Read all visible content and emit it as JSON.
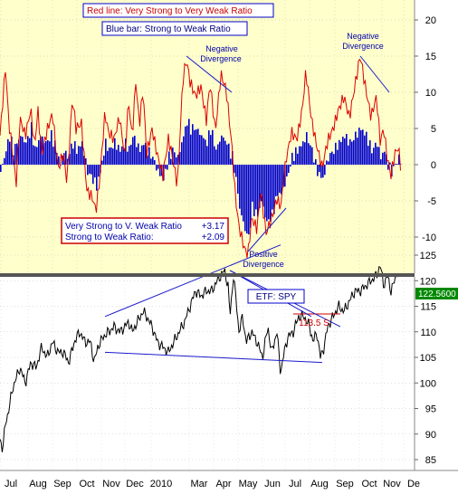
{
  "legend": {
    "red_line": "Red line:  Very Strong to Very Weak Ratio",
    "blue_bar": "Blue bar:  Strong to Weak Ratio"
  },
  "readout": {
    "row1_label": "Very Strong to V. Weak Ratio",
    "row1_value": "+3.17",
    "row2_label": "Strong to Weak Ratio:",
    "row2_value": "+2.09"
  },
  "colors": {
    "top_background": "#ffffcc",
    "red_line": "#dd0000",
    "blue_bar": "#0000cc",
    "price_line": "#000000",
    "trend_line": "#1a1acc"
  },
  "chart_data": [
    {
      "type": "bar",
      "panel": "breadth-ratio",
      "title": "",
      "yticks": [
        -10,
        -5,
        0,
        5,
        10,
        15,
        20
      ],
      "ylim": [
        -14,
        23
      ],
      "grid": true,
      "gridlines": "dotted",
      "months": [
        "Jul",
        "Aug",
        "Sep",
        "Oct",
        "Nov",
        "Dec",
        "2010",
        "Mar",
        "Apr",
        "May",
        "Jun",
        "Jul",
        "Aug",
        "Sep",
        "Oct",
        "Nov",
        "De"
      ],
      "series": [
        {
          "name": "Very Strong to Very Weak Ratio",
          "style": "line",
          "color": "#dd0000",
          "keypoints": [
            [
              0,
              4
            ],
            [
              6,
              13
            ],
            [
              10,
              5
            ],
            [
              14,
              1
            ],
            [
              18,
              -3
            ],
            [
              22,
              6
            ],
            [
              28,
              4
            ],
            [
              34,
              8
            ],
            [
              38,
              3
            ],
            [
              42,
              8
            ],
            [
              46,
              2
            ],
            [
              52,
              5
            ],
            [
              58,
              7
            ],
            [
              64,
              -1
            ],
            [
              70,
              1
            ],
            [
              74,
              -3
            ],
            [
              80,
              9
            ],
            [
              84,
              5
            ],
            [
              90,
              6
            ],
            [
              96,
              -3
            ],
            [
              102,
              -4
            ],
            [
              106,
              -6
            ],
            [
              110,
              -2
            ],
            [
              116,
              7
            ],
            [
              120,
              4
            ],
            [
              126,
              3
            ],
            [
              132,
              6
            ],
            [
              138,
              1
            ],
            [
              142,
              9
            ],
            [
              146,
              4
            ],
            [
              150,
              12
            ],
            [
              154,
              6
            ],
            [
              158,
              11
            ],
            [
              162,
              2
            ],
            [
              168,
              5
            ],
            [
              174,
              1
            ],
            [
              180,
              -2
            ],
            [
              186,
              3
            ],
            [
              190,
              1
            ],
            [
              196,
              -3
            ],
            [
              202,
              12
            ],
            [
              206,
              15
            ],
            [
              210,
              12
            ],
            [
              216,
              10
            ],
            [
              222,
              11
            ],
            [
              228,
              6
            ],
            [
              232,
              11
            ],
            [
              238,
              4
            ],
            [
              244,
              12
            ],
            [
              250,
              10
            ],
            [
              256,
              3
            ],
            [
              260,
              -4
            ],
            [
              264,
              -8
            ],
            [
              270,
              -11
            ],
            [
              274,
              -12
            ],
            [
              278,
              -7
            ],
            [
              284,
              -9
            ],
            [
              288,
              -4
            ],
            [
              294,
              -10
            ],
            [
              300,
              -8
            ],
            [
              306,
              -5
            ],
            [
              310,
              -6
            ],
            [
              316,
              1
            ],
            [
              322,
              5
            ],
            [
              328,
              4
            ],
            [
              334,
              8
            ],
            [
              338,
              13
            ],
            [
              344,
              6
            ],
            [
              350,
              2
            ],
            [
              356,
              -1
            ],
            [
              362,
              3
            ],
            [
              368,
              5
            ],
            [
              374,
              8
            ],
            [
              380,
              10
            ],
            [
              386,
              7
            ],
            [
              392,
              11
            ],
            [
              398,
              15
            ],
            [
              404,
              10
            ],
            [
              410,
              6
            ],
            [
              416,
              9
            ],
            [
              420,
              3
            ],
            [
              424,
              5
            ],
            [
              428,
              1
            ],
            [
              432,
              -1
            ],
            [
              436,
              2
            ],
            [
              440,
              3
            ],
            [
              443,
              0
            ]
          ]
        },
        {
          "name": "Strong to Weak Ratio",
          "style": "bar",
          "color": "#0000cc",
          "keypoints": [
            [
              0,
              -1
            ],
            [
              6,
              2
            ],
            [
              10,
              4
            ],
            [
              14,
              2
            ],
            [
              18,
              3
            ],
            [
              22,
              4
            ],
            [
              28,
              3
            ],
            [
              34,
              5
            ],
            [
              38,
              2
            ],
            [
              44,
              4
            ],
            [
              50,
              3
            ],
            [
              56,
              4
            ],
            [
              62,
              2
            ],
            [
              66,
              0
            ],
            [
              70,
              2
            ],
            [
              74,
              1
            ],
            [
              80,
              3
            ],
            [
              84,
              2
            ],
            [
              90,
              3
            ],
            [
              96,
              -1
            ],
            [
              102,
              -2
            ],
            [
              106,
              -3
            ],
            [
              110,
              -1
            ],
            [
              116,
              3
            ],
            [
              120,
              2
            ],
            [
              126,
              3
            ],
            [
              132,
              2
            ],
            [
              138,
              3
            ],
            [
              142,
              2
            ],
            [
              146,
              4
            ],
            [
              150,
              3
            ],
            [
              154,
              2
            ],
            [
              158,
              3
            ],
            [
              162,
              2
            ],
            [
              168,
              1
            ],
            [
              174,
              -1
            ],
            [
              180,
              -2
            ],
            [
              186,
              1
            ],
            [
              190,
              2
            ],
            [
              196,
              1
            ],
            [
              202,
              4
            ],
            [
              206,
              6
            ],
            [
              210,
              5
            ],
            [
              216,
              5
            ],
            [
              222,
              4
            ],
            [
              228,
              3
            ],
            [
              232,
              5
            ],
            [
              238,
              2
            ],
            [
              244,
              4
            ],
            [
              250,
              3
            ],
            [
              256,
              1
            ],
            [
              260,
              -2
            ],
            [
              264,
              -6
            ],
            [
              270,
              -9
            ],
            [
              274,
              -10
            ],
            [
              278,
              -6
            ],
            [
              284,
              -7
            ],
            [
              288,
              -5
            ],
            [
              294,
              -8
            ],
            [
              300,
              -7
            ],
            [
              306,
              -4
            ],
            [
              310,
              -4
            ],
            [
              316,
              -2
            ],
            [
              322,
              1
            ],
            [
              328,
              2
            ],
            [
              334,
              3
            ],
            [
              338,
              4
            ],
            [
              344,
              2
            ],
            [
              350,
              -1
            ],
            [
              356,
              -2
            ],
            [
              362,
              1
            ],
            [
              368,
              2
            ],
            [
              374,
              3
            ],
            [
              380,
              4
            ],
            [
              386,
              3
            ],
            [
              392,
              4
            ],
            [
              398,
              5
            ],
            [
              404,
              4
            ],
            [
              410,
              2
            ],
            [
              416,
              3
            ],
            [
              420,
              1
            ],
            [
              424,
              2
            ],
            [
              428,
              0
            ],
            [
              432,
              -1
            ],
            [
              436,
              0
            ],
            [
              440,
              1
            ],
            [
              443,
              0
            ]
          ]
        }
      ],
      "annotations": [
        {
          "text": "Negative\nDivergence",
          "type": "divergence",
          "line": [
            [
              206,
              15
            ],
            [
              256,
              10
            ]
          ]
        },
        {
          "text": "Negative\nDivergence",
          "type": "divergence",
          "line": [
            [
              398,
              15
            ],
            [
              430,
              10
            ]
          ]
        },
        {
          "text": "Positive\nDivergence",
          "type": "divergence",
          "line": [
            [
              274,
              -12
            ],
            [
              316,
              -6
            ]
          ]
        }
      ]
    },
    {
      "type": "line",
      "panel": "price",
      "title": "ETF: SPY",
      "series_name": "SPY",
      "last_value_label": "122.5600",
      "yticks": [
        85,
        90,
        95,
        100,
        105,
        110,
        115,
        120,
        125
      ],
      "ylim": [
        83.5,
        127.5
      ],
      "grid": true,
      "gridlines": "dotted",
      "keypoints": [
        [
          0,
          89
        ],
        [
          3,
          87
        ],
        [
          6,
          92
        ],
        [
          10,
          95
        ],
        [
          14,
          99
        ],
        [
          18,
          101
        ],
        [
          22,
          103
        ],
        [
          28,
          100
        ],
        [
          34,
          104
        ],
        [
          40,
          103
        ],
        [
          46,
          107
        ],
        [
          52,
          105
        ],
        [
          58,
          108
        ],
        [
          64,
          106
        ],
        [
          70,
          106
        ],
        [
          76,
          104
        ],
        [
          82,
          108
        ],
        [
          88,
          110
        ],
        [
          94,
          108
        ],
        [
          100,
          108
        ],
        [
          104,
          104
        ],
        [
          108,
          107
        ],
        [
          114,
          109
        ],
        [
          120,
          110
        ],
        [
          126,
          111
        ],
        [
          132,
          110
        ],
        [
          138,
          111
        ],
        [
          142,
          112
        ],
        [
          146,
          110
        ],
        [
          152,
          112
        ],
        [
          158,
          114
        ],
        [
          162,
          113
        ],
        [
          168,
          111
        ],
        [
          174,
          108
        ],
        [
          180,
          107
        ],
        [
          186,
          106
        ],
        [
          192,
          108
        ],
        [
          198,
          110
        ],
        [
          204,
          112
        ],
        [
          210,
          115
        ],
        [
          216,
          118
        ],
        [
          222,
          117
        ],
        [
          228,
          118
        ],
        [
          234,
          118
        ],
        [
          240,
          120
        ],
        [
          244,
          121
        ],
        [
          248,
          122
        ],
        [
          252,
          119
        ],
        [
          254,
          113
        ],
        [
          256,
          117
        ],
        [
          258,
          121
        ],
        [
          262,
          114
        ],
        [
          264,
          110
        ],
        [
          268,
          113
        ],
        [
          272,
          108
        ],
        [
          278,
          110
        ],
        [
          284,
          108
        ],
        [
          290,
          105
        ],
        [
          296,
          111
        ],
        [
          300,
          106
        ],
        [
          306,
          110
        ],
        [
          310,
          102
        ],
        [
          314,
          106
        ],
        [
          318,
          109
        ],
        [
          324,
          110
        ],
        [
          330,
          113
        ],
        [
          336,
          113
        ],
        [
          342,
          111
        ],
        [
          346,
          108
        ],
        [
          350,
          110
        ],
        [
          354,
          105
        ],
        [
          358,
          107
        ],
        [
          362,
          111
        ],
        [
          368,
          113
        ],
        [
          374,
          115
        ],
        [
          380,
          114
        ],
        [
          386,
          116
        ],
        [
          392,
          118
        ],
        [
          398,
          118
        ],
        [
          404,
          119
        ],
        [
          410,
          120
        ],
        [
          416,
          121
        ],
        [
          420,
          123
        ],
        [
          424,
          119
        ],
        [
          428,
          121
        ],
        [
          432,
          118
        ],
        [
          436,
          120
        ],
        [
          440,
          122.56
        ]
      ],
      "annotations": [
        {
          "text": "113.5 S",
          "type": "resistance",
          "value": 113.5,
          "line": [
            [
              324,
              113.5
            ],
            [
              376,
              113.5
            ]
          ]
        },
        {
          "text": "",
          "type": "trendline",
          "line": [
            [
              116,
              113
            ],
            [
              310,
              127
            ]
          ]
        },
        {
          "text": "",
          "type": "trendline",
          "line": [
            [
              116,
              106
            ],
            [
              356,
              104
            ]
          ]
        },
        {
          "text": "",
          "type": "trendline",
          "line": [
            [
              254,
              122
            ],
            [
              344,
              113
            ]
          ]
        },
        {
          "text": "",
          "type": "trendline",
          "line": [
            [
              254,
              122
            ],
            [
              376,
              111
            ]
          ]
        }
      ]
    }
  ]
}
